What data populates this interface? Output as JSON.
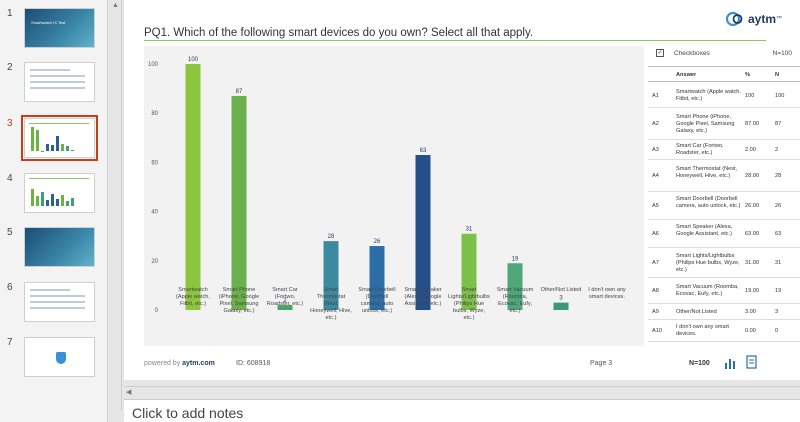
{
  "thumbnails": [
    {
      "num": "1",
      "title": "Smartwatch IX Test",
      "style": "dark"
    },
    {
      "num": "2",
      "title": "",
      "style": "text"
    },
    {
      "num": "3",
      "title": "",
      "style": "chart",
      "active": true
    },
    {
      "num": "4",
      "title": "",
      "style": "chart2"
    },
    {
      "num": "5",
      "title": "",
      "style": "dark"
    },
    {
      "num": "6",
      "title": "",
      "style": "text"
    },
    {
      "num": "7",
      "title": "",
      "style": "logo"
    }
  ],
  "slide": {
    "title": "PQ1. Which of the following smart devices do you own? Select all that apply.",
    "logo_text": "aytm",
    "logo_tm": "™"
  },
  "table": {
    "header_name": "Checkboxes",
    "header_n": "N=100",
    "columns": {
      "answer": "Answer",
      "pct": "%",
      "n": "N"
    },
    "rows": [
      {
        "code": "A1",
        "answer": "Smartwatch (Apple watch, Fitbit, etc.)",
        "pct": "100",
        "n": "100"
      },
      {
        "code": "A2",
        "answer": "Smart Phone (iPhone, Google Pixel, Samsung Galaxy, etc.)",
        "pct": "87.00",
        "n": "87"
      },
      {
        "code": "A3",
        "answer": "Smart Car (Fortwo, Roadster, etc.)",
        "pct": "2.00",
        "n": "2"
      },
      {
        "code": "A4",
        "answer": "Smart Thermostat (Nest, Honeywell, Hive, etc.)",
        "pct": "28.00",
        "n": "28"
      },
      {
        "code": "A5",
        "answer": "Smart Doorbell (Doorbell camera, auto unlock, etc.)",
        "pct": "26.00",
        "n": "26"
      },
      {
        "code": "A6",
        "answer": "Smart Speaker (Alexa, Google Assistant, etc.)",
        "pct": "63.00",
        "n": "63"
      },
      {
        "code": "A7",
        "answer": "Smart Lights/Lightbulbs (Philips Hue bulbs, Wyze, etc.)",
        "pct": "31.00",
        "n": "31"
      },
      {
        "code": "A8",
        "answer": "Smart Vacuum (Roomba, Ecovac, Eufy, etc.)",
        "pct": "19.00",
        "n": "19"
      },
      {
        "code": "A9",
        "answer": "Other/Not Listed",
        "pct": "3.00",
        "n": "3"
      },
      {
        "code": "A10",
        "answer": "I don't own any smart devices.",
        "pct": "0.00",
        "n": "0"
      }
    ]
  },
  "footer": {
    "powered_prefix": "powered by ",
    "powered_brand": "aytm.com",
    "survey_id": "ID: 608918",
    "page": "Page  3",
    "n": "N=100"
  },
  "notes_placeholder": "Click to add notes",
  "chart_data": {
    "type": "bar",
    "categories": [
      "Smartwatch (Apple watch, Fitbit, etc.)",
      "Smart Phone (iPhone, Google Pixel, Samsung Galaxy, etc.)",
      "Smart Car (Fortwo, Roadster, etc.)",
      "Smart Thermostat (Nest, Honeywell, Hive, etc.)",
      "Smart Doorbell (Doorbell camera, auto unlock, etc.)",
      "Smart Speaker (Alexa, Google Assistant, etc.)",
      "Smart Lights/Lightbulbs (Philips Hue bulbs, Wyze, etc.)",
      "Smart Vacuum (Roomba, Ecovac, Eufy, etc.)",
      "Other/Not Listed",
      "I don't own any smart devices."
    ],
    "values": [
      100,
      87,
      2,
      28,
      26,
      63,
      31,
      19,
      3,
      0
    ],
    "bar_colors": [
      "#8cc63f",
      "#6ab04c",
      "#4fa06b",
      "#3d8aa0",
      "#2e6ea6",
      "#24508a",
      "#7cc04a",
      "#4fa878",
      "#3a9a7a",
      "#3a9a7a"
    ],
    "yticks": [
      0,
      20,
      40,
      60,
      80,
      100
    ],
    "ylim": [
      0,
      100
    ],
    "grid": false,
    "title": "",
    "xlabel": "",
    "ylabel": ""
  }
}
